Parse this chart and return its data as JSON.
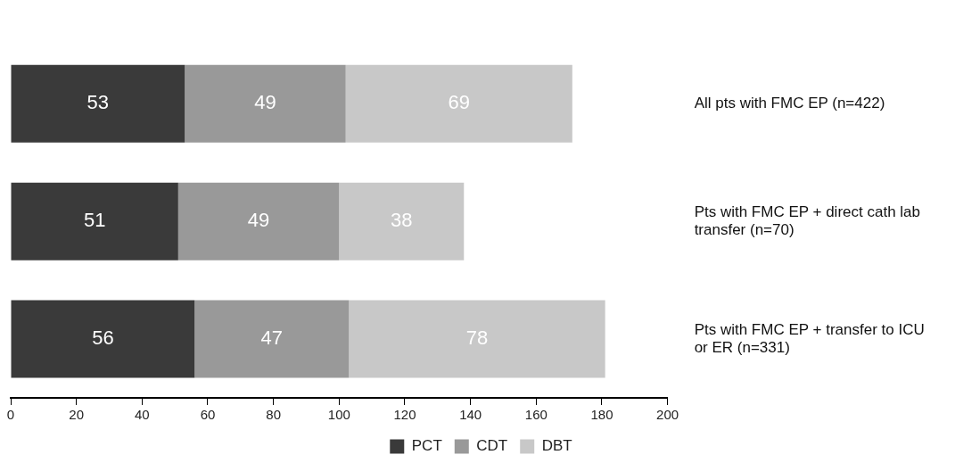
{
  "chart_data": {
    "type": "bar",
    "orientation": "horizontal",
    "stacked": true,
    "categories": [
      "All pts with FMC EP (n=422)",
      "Pts with FMC EP + direct cath lab transfer (n=70)",
      "Pts with FMC EP + transfer to ICU or ER (n=331)"
    ],
    "series": [
      {
        "name": "PCT",
        "color": "#3a3a3a",
        "values": [
          53,
          51,
          56
        ]
      },
      {
        "name": "CDT",
        "color": "#999999",
        "values": [
          49,
          49,
          47
        ]
      },
      {
        "name": "DBT",
        "color": "#c8c8c8",
        "values": [
          69,
          38,
          78
        ]
      }
    ],
    "xlim": [
      0,
      200
    ],
    "xticks": [
      0,
      20,
      40,
      60,
      80,
      100,
      120,
      140,
      160,
      180,
      200
    ],
    "data_labels": true,
    "grid": false,
    "legend": "bottom"
  }
}
